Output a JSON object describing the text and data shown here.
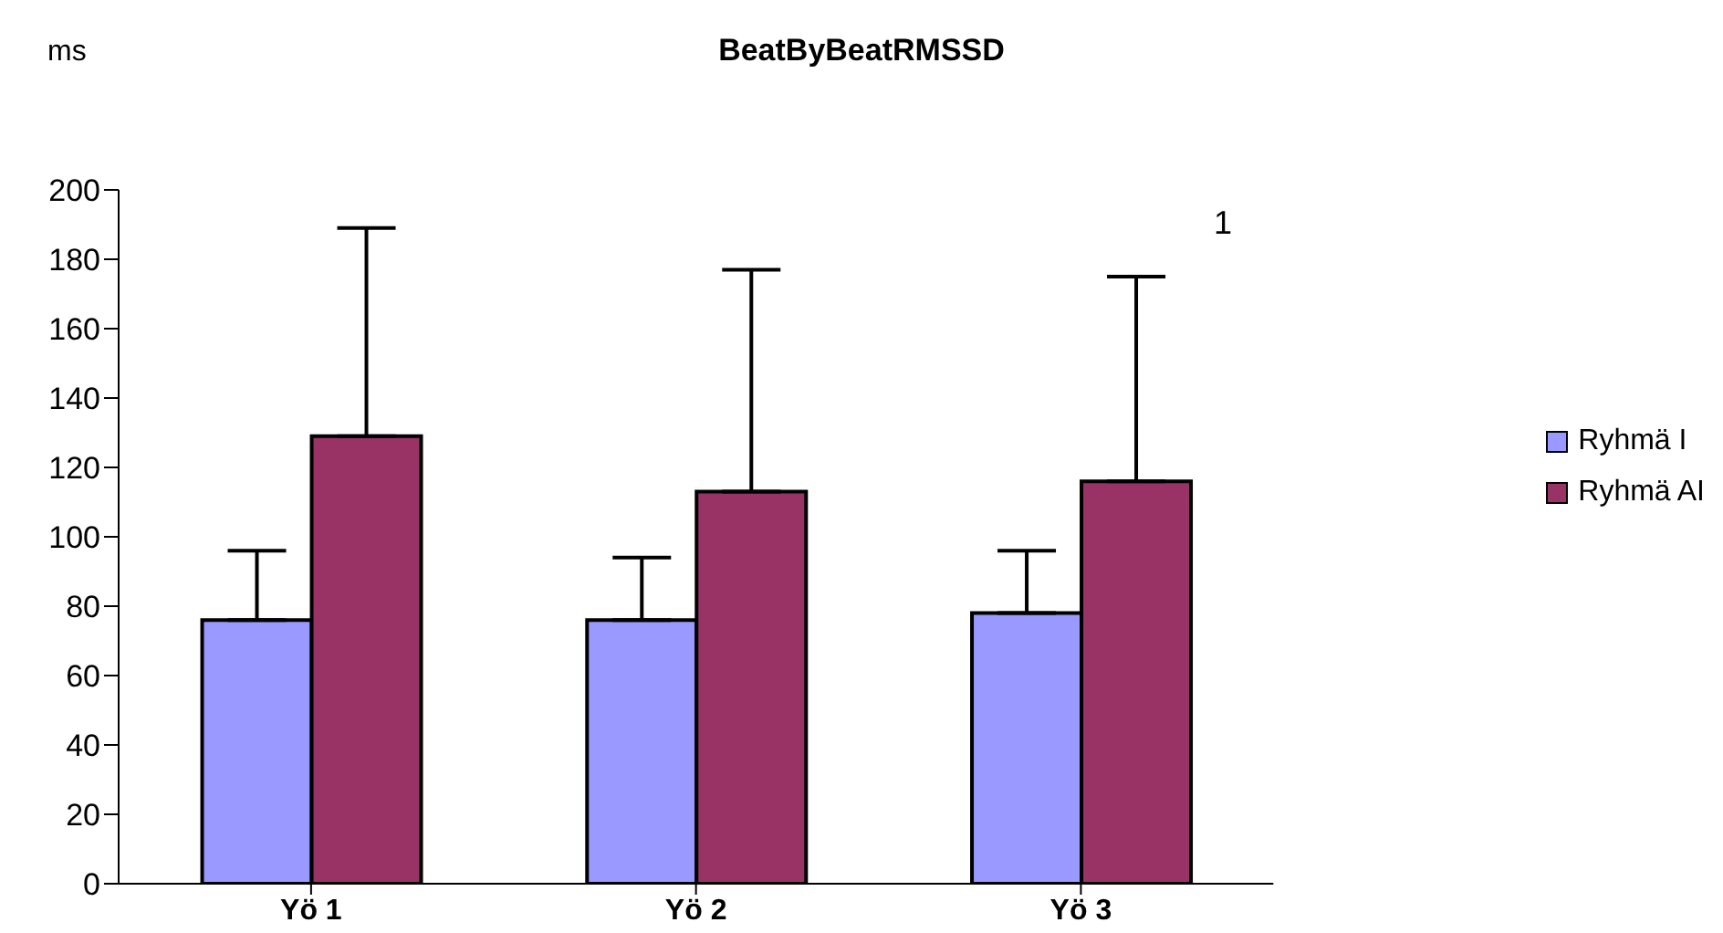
{
  "chart_data": {
    "type": "bar",
    "title": "BeatByBeatRMSSD",
    "ylabel": "ms",
    "categories": [
      "Yö 1",
      "Yö 2",
      "Yö  3"
    ],
    "series": [
      {
        "name": "Ryhmä I",
        "color": "#9999ff",
        "values": [
          76,
          76,
          78
        ],
        "errors": [
          [
            76,
            96
          ],
          [
            76,
            94
          ],
          [
            78,
            96
          ]
        ]
      },
      {
        "name": "Ryhmä AI",
        "color": "#993366",
        "values": [
          129,
          113,
          116
        ],
        "errors": [
          [
            129,
            189
          ],
          [
            113,
            177
          ],
          [
            116,
            175
          ]
        ]
      }
    ],
    "ylim": [
      0,
      200
    ],
    "yticks": [
      0,
      20,
      40,
      60,
      80,
      100,
      120,
      140,
      160,
      180,
      200
    ],
    "grid": false,
    "legend": "right",
    "annotations": [
      "1"
    ]
  }
}
